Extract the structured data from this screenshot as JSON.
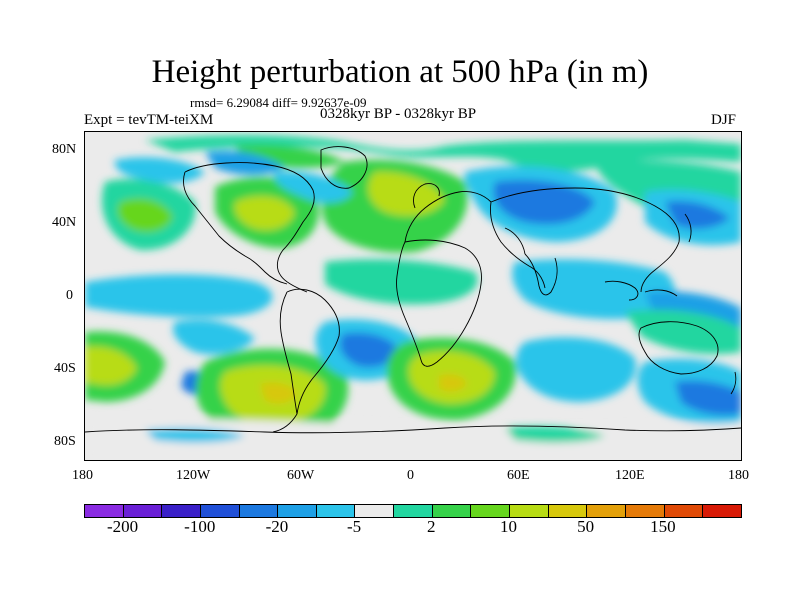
{
  "title": "Height perturbation at 500 hPa (in m)",
  "stats_line": "rmsd= 6.29084 diff= 9.92637e-09",
  "experiment": "Expt = tevTM-teiXM",
  "period": "0328kyr BP - 0328kyr BP",
  "season": "DJF",
  "lat_labels": [
    "80N",
    "40N",
    "0",
    "40S",
    "80S"
  ],
  "lon_labels": [
    "180",
    "120W",
    "60W",
    "0",
    "60E",
    "120E",
    "180"
  ],
  "colorbar": {
    "colors": [
      "#8a2be2",
      "#6a1fd6",
      "#3a20c8",
      "#2050d8",
      "#1c79e0",
      "#1ea0e6",
      "#2cc4ea",
      "#ebebeb",
      "#22d6a0",
      "#36d24a",
      "#66d61e",
      "#b8dc14",
      "#d7c80c",
      "#e3a00a",
      "#e57a08",
      "#e04a06",
      "#d81a06"
    ],
    "labels": [
      "-200",
      "-100",
      "-20",
      "-5",
      "2",
      "10",
      "50",
      "150"
    ]
  }
}
